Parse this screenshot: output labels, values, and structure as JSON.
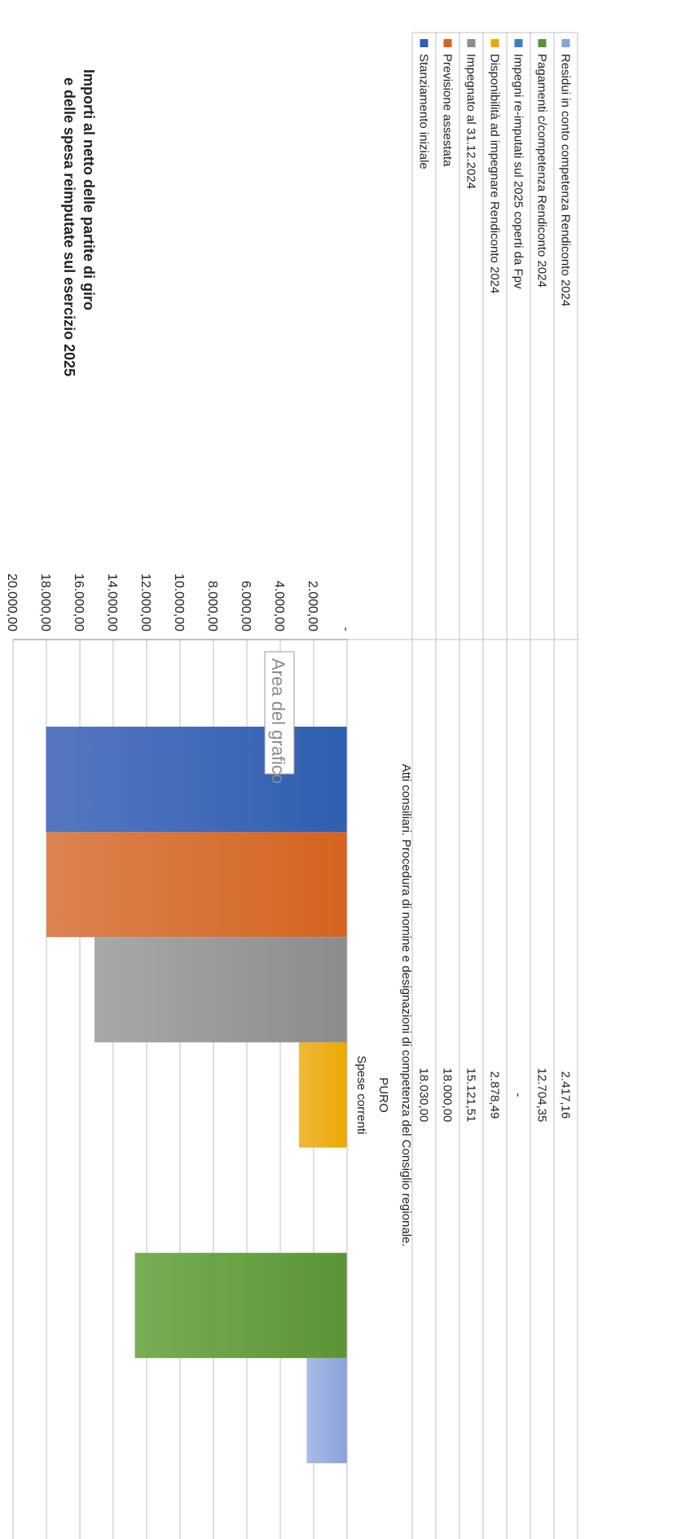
{
  "chart_data": {
    "type": "bar",
    "title": "Importi al netto delle partite di giro",
    "subtitle": "e delle spesa reimputate sul esercizio 2025",
    "categories": [
      "Spese correnti"
    ],
    "category_group_label": "PURO",
    "category_description": "Atti consiliari. Procedura di nomine e designazioni di competenza del Consiglio regionale.",
    "y_axis_range": [
      0,
      20000
    ],
    "y_axis_ticks": [
      "-",
      "2.000,00",
      "4.000,00",
      "6.000,00",
      "8.000,00",
      "10.000,00",
      "12.000,00",
      "14.000,00",
      "16.000,00",
      "18.000,00",
      "20.000,00"
    ],
    "grid": true,
    "legend_position": "bottom (data table)",
    "series": [
      {
        "name": "Stanziamento iniziale",
        "values": [
          18030.0
        ],
        "label": "18.030,00",
        "color": "#2f5fb0",
        "color_light": "#5577c0"
      },
      {
        "name": "Previsione assestata",
        "values": [
          18000.0
        ],
        "label": "18.000,00",
        "color": "#d4631f",
        "color_light": "#db8350"
      },
      {
        "name": "Impegnato al 31.12.2024",
        "values": [
          15121.51
        ],
        "label": "15.121,51",
        "color": "#8c8c8c",
        "color_light": "#a8a8a8"
      },
      {
        "name": "Disponibilità ad impegnare  Rendiconto 2024",
        "values": [
          2878.49
        ],
        "label": "2.878,49",
        "color": "#eba900",
        "color_light": "#f0b83c"
      },
      {
        "name": "Impegni re-imputati sul 2025 coperti da Fpv",
        "values": [
          0
        ],
        "label": "-",
        "color": "#3a7fc4",
        "color_light": "#5a9ad4"
      },
      {
        "name": "Pagamenti c/competenza Rendiconto 2024",
        "values": [
          12704.35
        ],
        "label": "12.704,35",
        "color": "#5a9435",
        "color_light": "#78ae55"
      },
      {
        "name": "Residui in conto competenza Rendiconto 2024",
        "values": [
          2417.16
        ],
        "label": "2.417,16",
        "color": "#8aa2dc",
        "color_light": "#a9bce6"
      }
    ],
    "tooltip": "Area del grafico"
  }
}
